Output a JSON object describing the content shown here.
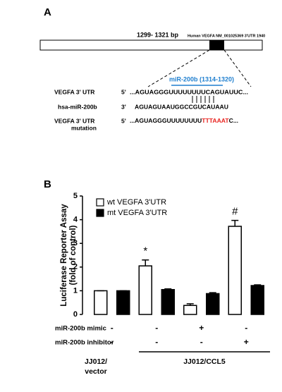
{
  "panel_a": {
    "panel_label": "A",
    "range_label": "1299- 1321 bp",
    "gene_label": "Human VEGFA NM_001025369 3'UTR  1940",
    "site_label": "miR-200b (1314-1320)",
    "rows": [
      {
        "name": "VEGFA 3' UTR",
        "prefix": "5'",
        "sequence": "...AGUAGGGUUUUUUUUCAGUAUUC..."
      },
      {
        "name": "hsa-miR-200b",
        "prefix": "3'",
        "sequence": "AGUAGUAAUGGCCGUCAUAAU"
      },
      {
        "name": [
          "VEGFA 3' UTR",
          "mutation"
        ],
        "prefix": "5'",
        "sequence": [
          "...AGUAGGGUUUUUUUU",
          "TTTAAAT",
          "C..."
        ]
      }
    ]
  },
  "chart_data": {
    "type": "bar",
    "panel_label": "B",
    "ylabel": [
      "Luciferase Reporter Assay",
      "(fold of control)"
    ],
    "categories": [
      null,
      null,
      null,
      null
    ],
    "series": [
      {
        "name": "wt VEGFA 3'UTR",
        "color": "#ffffff",
        "values": [
          1.0,
          2.05,
          0.38,
          3.72
        ],
        "error": [
          0,
          0.25,
          0.07,
          0.25
        ]
      },
      {
        "name": "mt VEGFA 3'UTR",
        "color": "#000000",
        "values": [
          1.0,
          1.05,
          0.88,
          1.22
        ],
        "error": [
          0,
          0.03,
          0.04,
          0.03
        ]
      }
    ],
    "annotations": [
      null,
      "*",
      null,
      "#"
    ],
    "ylim": [
      0,
      5
    ],
    "yticks": [
      0,
      1,
      2,
      3,
      4,
      5
    ],
    "conditions": [
      {
        "label": "miR-200b mimic",
        "values": [
          "-",
          "-",
          "+",
          "-"
        ]
      },
      {
        "label": "miR-200b inhibitor",
        "values": [
          "-",
          "-",
          "-",
          "+"
        ]
      }
    ],
    "groups": [
      [
        "JJ012/",
        "vector"
      ],
      [
        "JJ012/CCL5"
      ]
    ]
  }
}
